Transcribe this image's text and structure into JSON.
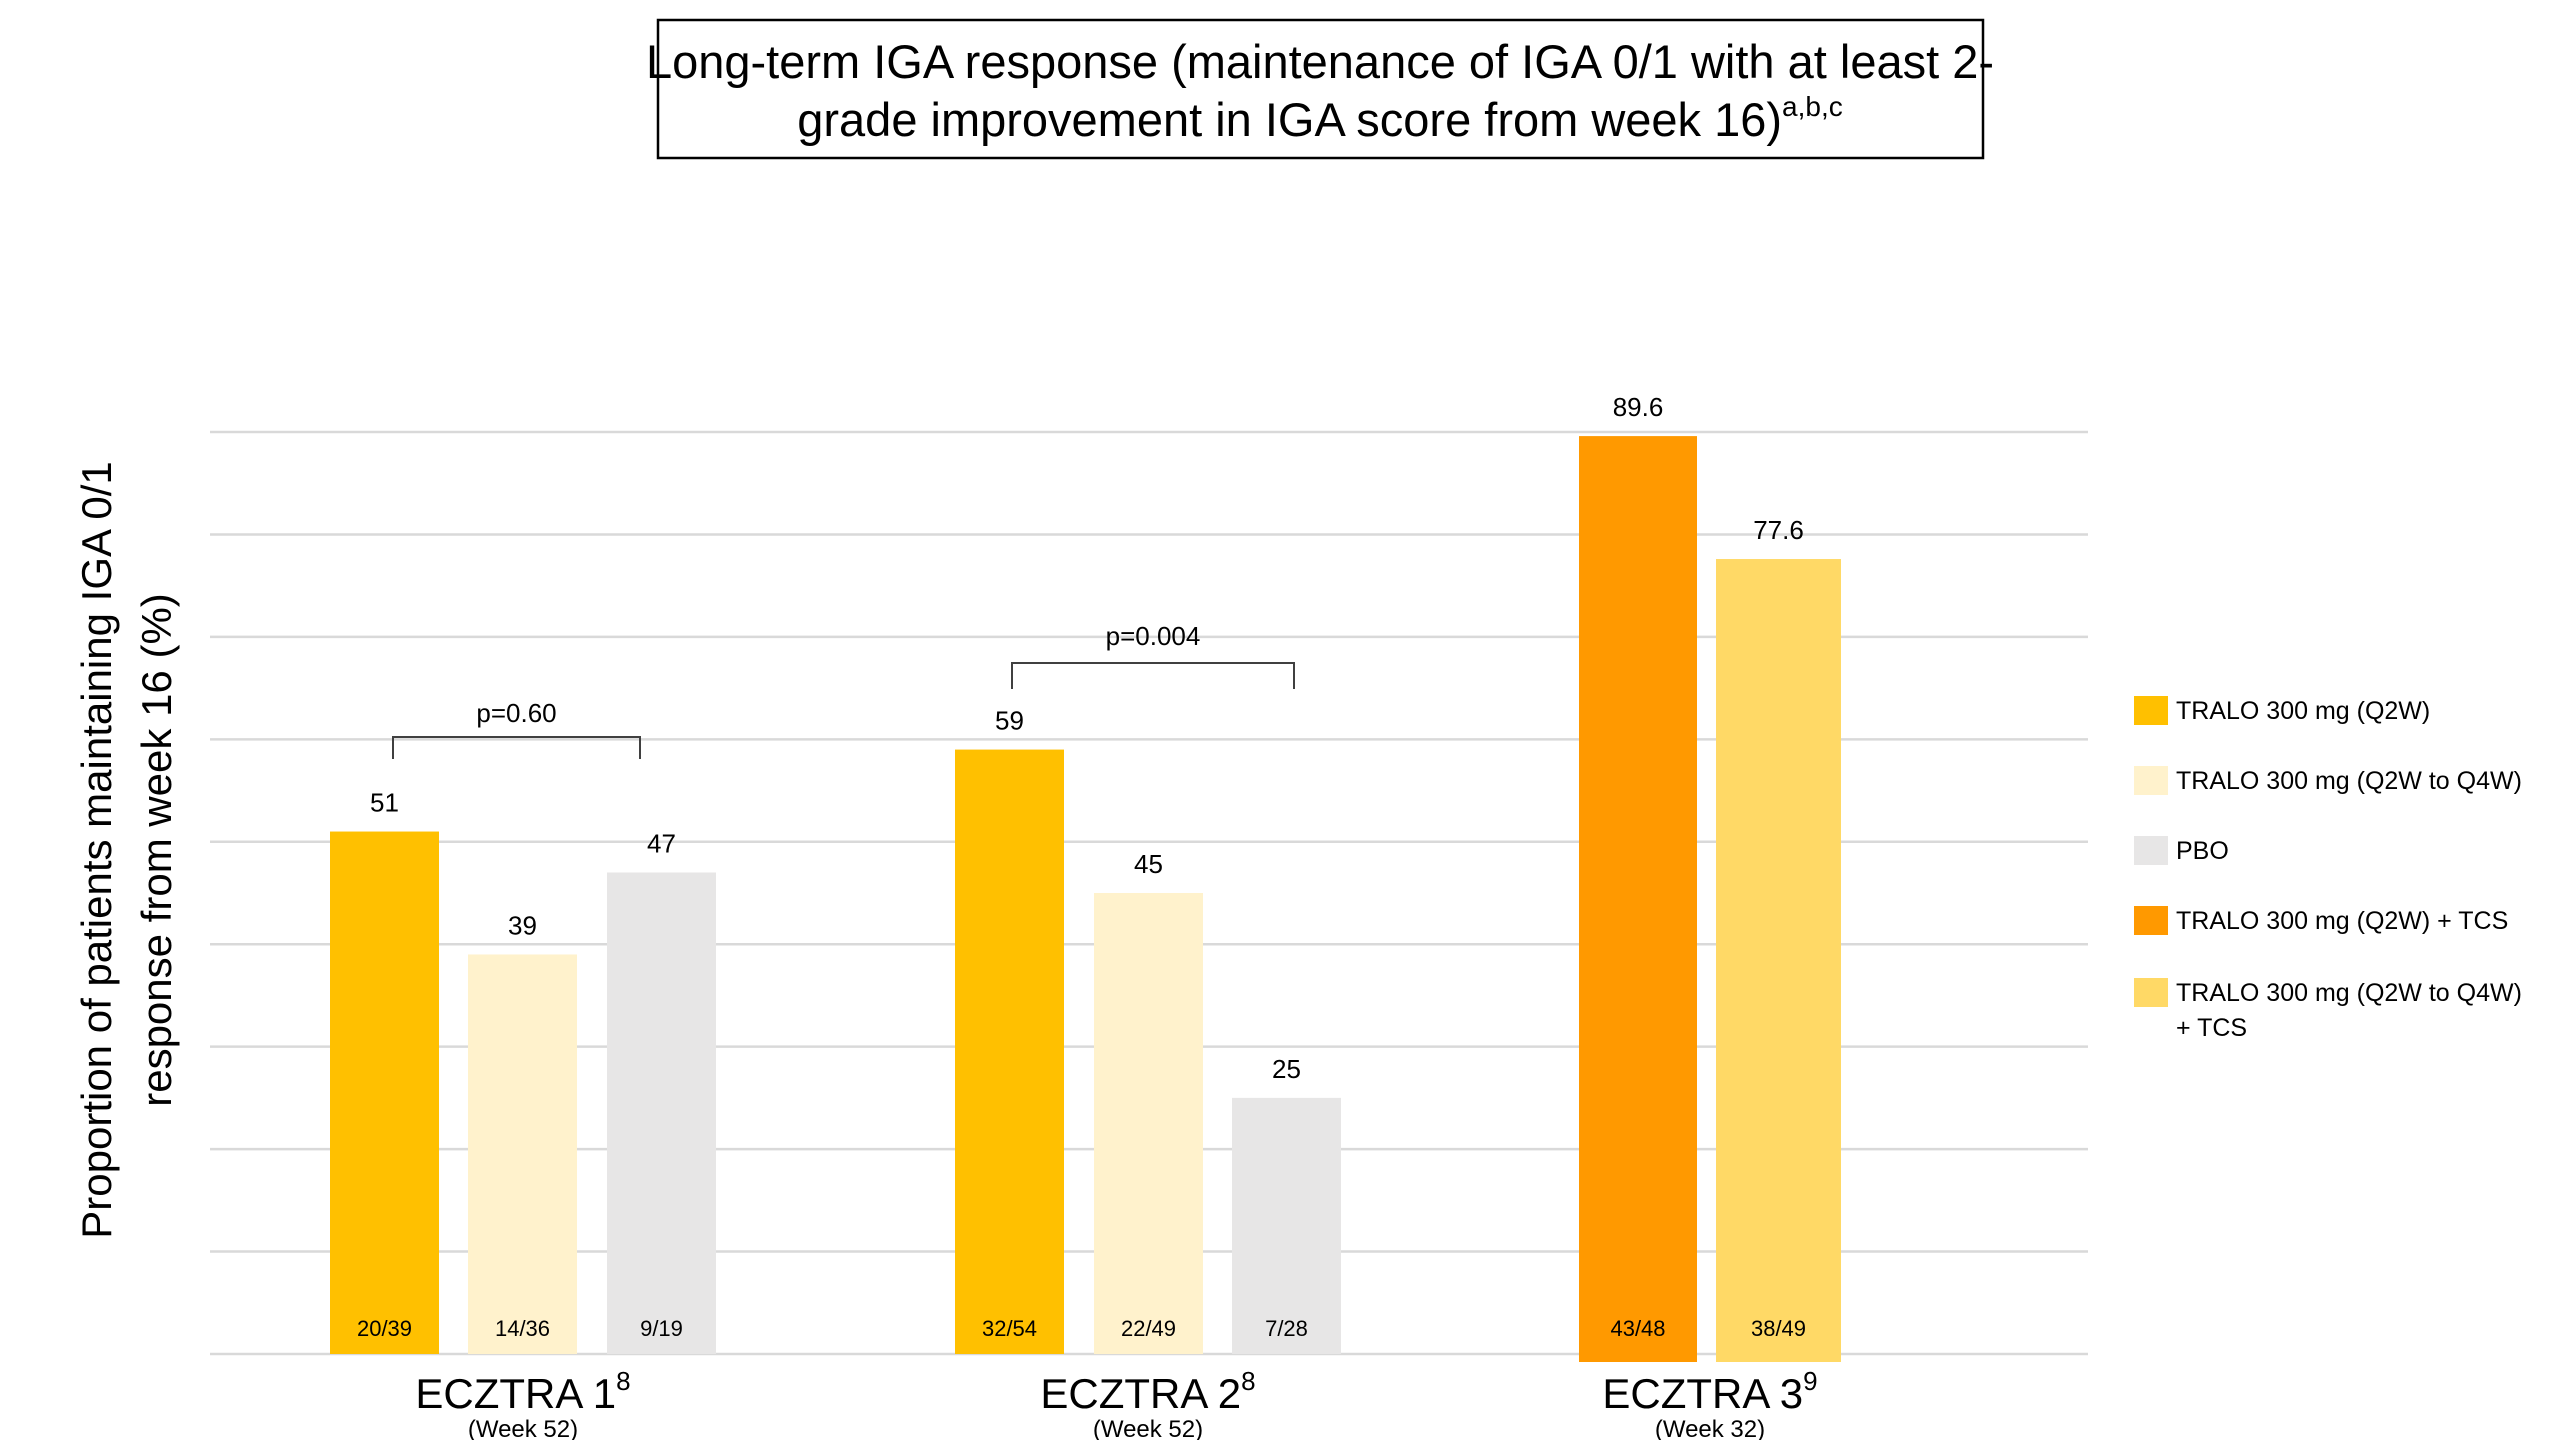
{
  "chart_data": {
    "type": "bar",
    "title_line1": "Long-term IGA response (maintenance of IGA 0/1 with at least 2-",
    "title_line2": "grade improvement in IGA score from week 16)",
    "title_superscript": "a,b,c",
    "ylabel_line1": "Proportion of patients maintaining IGA 0/1",
    "ylabel_line2": "response from week 16 (%)",
    "xlabel": "",
    "ylim": [
      0,
      90
    ],
    "grid_step": 10,
    "grid": true,
    "legend_placement": "right",
    "series": [
      {
        "name": "TRALO 300 mg (Q2W)",
        "color": "#FFC000"
      },
      {
        "name": "TRALO 300 mg (Q2W to Q4W)",
        "color": "#FFF2CC"
      },
      {
        "name": "PBO",
        "color": "#E7E6E6"
      },
      {
        "name": "TRALO 300 mg (Q2W) + TCS",
        "color": "#FF9900"
      },
      {
        "name": "TRALO 300 mg (Q2W to Q4W) + TCS",
        "legend_line1": "TRALO 300 mg (Q2W to Q4W)",
        "legend_line2": "+ TCS",
        "color": "#FFD966"
      }
    ],
    "groups": [
      {
        "label": "ECZTRA 1",
        "sup": "8",
        "sublabel": "(Week 52)",
        "p_value": "p=0.60",
        "bars": [
          {
            "series": 0,
            "value": 51,
            "label": "51",
            "n": "20/39"
          },
          {
            "series": 1,
            "value": 39,
            "label": "39",
            "n": "14/36"
          },
          {
            "series": 2,
            "value": 47,
            "label": "47",
            "n": "9/19"
          }
        ]
      },
      {
        "label": "ECZTRA 2",
        "sup": "8",
        "sublabel": "(Week 52)",
        "p_value": "p=0.004",
        "bars": [
          {
            "series": 0,
            "value": 59,
            "label": "59",
            "n": "32/54"
          },
          {
            "series": 1,
            "value": 45,
            "label": "45",
            "n": "22/49"
          },
          {
            "series": 2,
            "value": 25,
            "label": "25",
            "n": "7/28"
          }
        ]
      },
      {
        "label": "ECZTRA 3",
        "sup": "9",
        "sublabel": "(Week 32)",
        "p_value": null,
        "bars": [
          {
            "series": 3,
            "value": 89.6,
            "label": "89.6",
            "n": "43/48"
          },
          {
            "series": 4,
            "value": 77.6,
            "label": "77.6",
            "n": "38/49"
          }
        ]
      }
    ]
  }
}
